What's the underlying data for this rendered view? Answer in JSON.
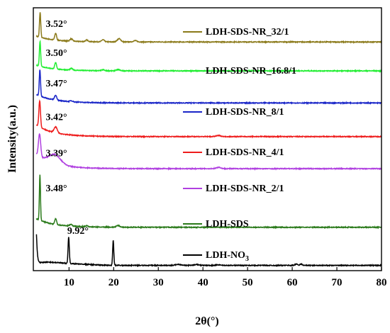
{
  "chart_data": {
    "type": "line",
    "xlabel": "2θ(°)",
    "ylabel": "Intensity(a.u.)",
    "xlim": [
      2,
      80
    ],
    "xticks": [
      10,
      20,
      30,
      40,
      50,
      60,
      70,
      80
    ],
    "y_ticks_shown": false,
    "grid": false,
    "legend_placement": "right, beside each curve",
    "series": [
      {
        "name": "LDH-SDS-NR_32/1",
        "color": "#8b7a1a",
        "baseline": 0.87,
        "peak_label": "3.52°",
        "peaks": [
          [
            3.52,
            0.095,
            0.14
          ],
          [
            7.0,
            0.026,
            0.2
          ],
          [
            10.5,
            0.009,
            0.3
          ],
          [
            14.0,
            0.006,
            0.3
          ],
          [
            17.6,
            0.008,
            0.3
          ],
          [
            21.2,
            0.012,
            0.4
          ],
          [
            24.8,
            0.005,
            0.4
          ]
        ],
        "tail": 0.02
      },
      {
        "name": "LDH-SDS-NR_16.8/1",
        "color": "#22ee33",
        "baseline": 0.76,
        "peak_label": "3.50°",
        "peaks": [
          [
            3.5,
            0.095,
            0.14
          ],
          [
            7.0,
            0.024,
            0.2
          ],
          [
            10.5,
            0.006,
            0.3
          ],
          [
            17.6,
            0.004,
            0.3
          ],
          [
            21.0,
            0.005,
            0.4
          ]
        ],
        "tail": 0.02
      },
      {
        "name": "LDH-SDS-NR_8/1",
        "color": "#1a26c8",
        "baseline": 0.638,
        "peak_label": "3.47°",
        "peaks": [
          [
            3.47,
            0.1,
            0.14
          ],
          [
            7.0,
            0.018,
            0.25
          ],
          [
            10.5,
            0.004,
            0.3
          ]
        ],
        "tail": 0.03
      },
      {
        "name": "LDH-SDS-NR_4/1",
        "color": "#ee1c1c",
        "baseline": 0.51,
        "peak_label": "3.42°",
        "peaks": [
          [
            3.42,
            0.1,
            0.18
          ],
          [
            7.0,
            0.022,
            0.35
          ],
          [
            43.5,
            0.004,
            0.5
          ]
        ],
        "tail": 0.04
      },
      {
        "name": "LDH-SDS-NR_2/1",
        "color": "#b040e0",
        "baseline": 0.388,
        "peak_label": "3.39°",
        "peaks": [
          [
            3.39,
            0.085,
            0.25
          ],
          [
            6.8,
            0.035,
            1.3
          ],
          [
            43.5,
            0.005,
            0.5
          ]
        ],
        "tail": 0.05
      },
      {
        "name": "LDH-SDS",
        "color": "#2a7a1a",
        "baseline": 0.165,
        "peak_label": "3.48°",
        "peaks": [
          [
            3.48,
            0.175,
            0.12
          ],
          [
            7.0,
            0.022,
            0.2
          ],
          [
            10.4,
            0.006,
            0.3
          ],
          [
            14.0,
            0.004,
            0.3
          ],
          [
            21.0,
            0.006,
            0.4
          ]
        ],
        "tail": 0.03
      },
      {
        "name": "LDH-NO",
        "name_subscript": "3",
        "color": "#000000",
        "baseline": 0.02,
        "peak_label": "9.92°",
        "peaks": [
          [
            2.2,
            0.3,
            0.35
          ],
          [
            9.92,
            0.1,
            0.14
          ],
          [
            19.9,
            0.095,
            0.13
          ],
          [
            34.5,
            0.004,
            0.6
          ],
          [
            38.5,
            0.003,
            0.6
          ],
          [
            43.5,
            0.002,
            0.6
          ],
          [
            60.9,
            0.006,
            0.25
          ],
          [
            62.0,
            0.005,
            0.25
          ]
        ],
        "tail": 0.0,
        "broad": [
          [
            5.0,
            0.012,
            3.5
          ],
          [
            12.5,
            0.004,
            3.0
          ]
        ]
      }
    ]
  }
}
